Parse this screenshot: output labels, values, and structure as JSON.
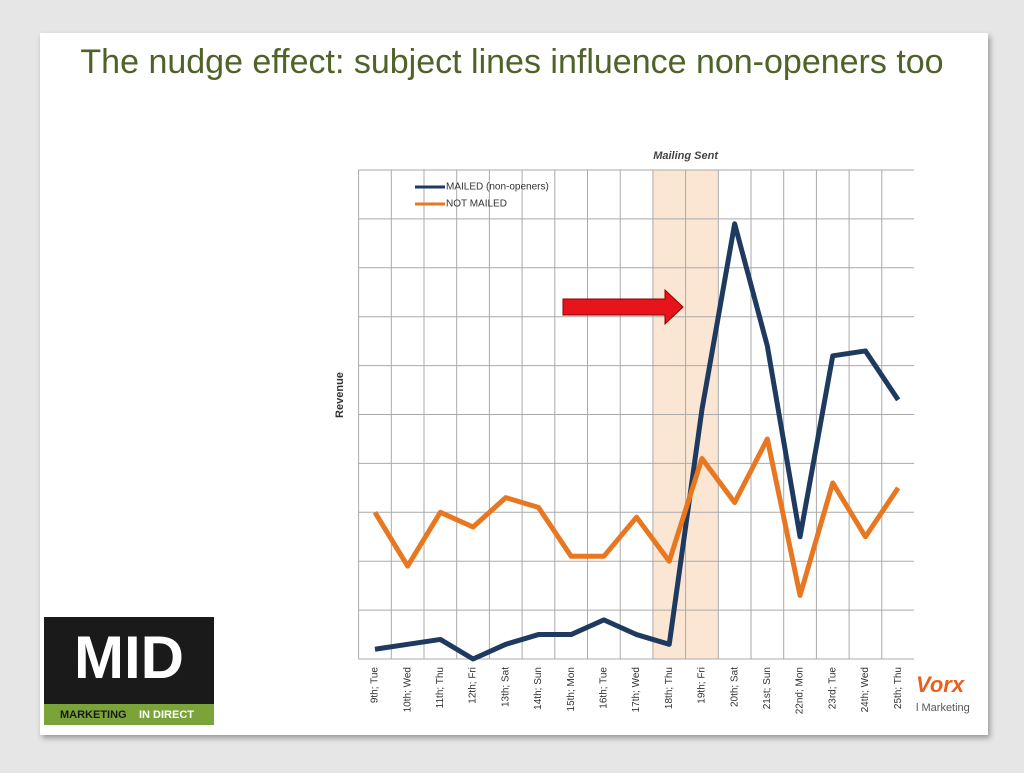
{
  "slide_title": "The nudge effect: subject lines influence non-openers too",
  "logos": {
    "left_main": "MID",
    "left_tag_1": "MARKETING",
    "left_tag_2": "IN DIRECT",
    "right_main": "Vorx",
    "right_tag": "l Marketing"
  },
  "chart_data": {
    "type": "line",
    "annotation": "Mailing Sent",
    "y_label": "Revenue",
    "categories": [
      "9th; Tue",
      "10th; Wed",
      "11th; Thu",
      "12th; Fri",
      "13th; Sat",
      "14th; Sun",
      "15th; Mon",
      "16th; Tue",
      "17th; Wed",
      "18th; Thu",
      "19th; Fri",
      "20th; Sat",
      "21st; Sun",
      "22nd; Mon",
      "23rd; Tue",
      "24th; Wed",
      "25th; Thu"
    ],
    "series": [
      {
        "name": "MAILED (non-openers)",
        "color": "#1f3a5f",
        "values": [
          0.2,
          0.3,
          0.4,
          0.0,
          0.3,
          0.5,
          0.5,
          0.8,
          0.5,
          0.3,
          5.1,
          8.9,
          6.4,
          2.5,
          6.2,
          6.3,
          5.3
        ]
      },
      {
        "name": "NOT MAILED",
        "color": "#e87722",
        "values": [
          3.0,
          1.9,
          3.0,
          2.7,
          3.3,
          3.1,
          2.1,
          2.1,
          2.9,
          2.0,
          4.1,
          3.2,
          4.5,
          1.3,
          3.6,
          2.5,
          3.5
        ]
      }
    ],
    "ylim": [
      0,
      10
    ],
    "grid": true,
    "legend": "top-left"
  }
}
